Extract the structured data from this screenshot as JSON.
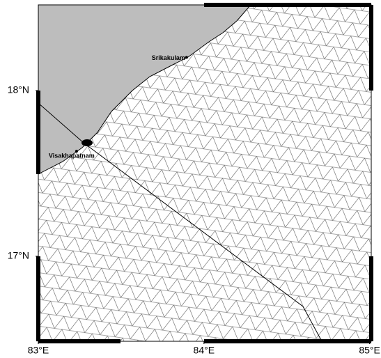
{
  "map": {
    "xlim": [
      83,
      85.01
    ],
    "ylim": [
      16.487,
      18.517
    ],
    "xticks": [
      {
        "value": 83,
        "label": "83°E"
      },
      {
        "value": 84,
        "label": "84°E"
      },
      {
        "value": 85,
        "label": "85°E"
      }
    ],
    "yticks": [
      {
        "value": 17,
        "label": "17°N"
      },
      {
        "value": 18,
        "label": "18°N"
      }
    ],
    "places": [
      {
        "name": "Srikakulam",
        "lon": 83.895,
        "lat": 18.2
      },
      {
        "name": "Visakhapatnam",
        "lon": 83.231,
        "lat": 17.634
      }
    ]
  }
}
